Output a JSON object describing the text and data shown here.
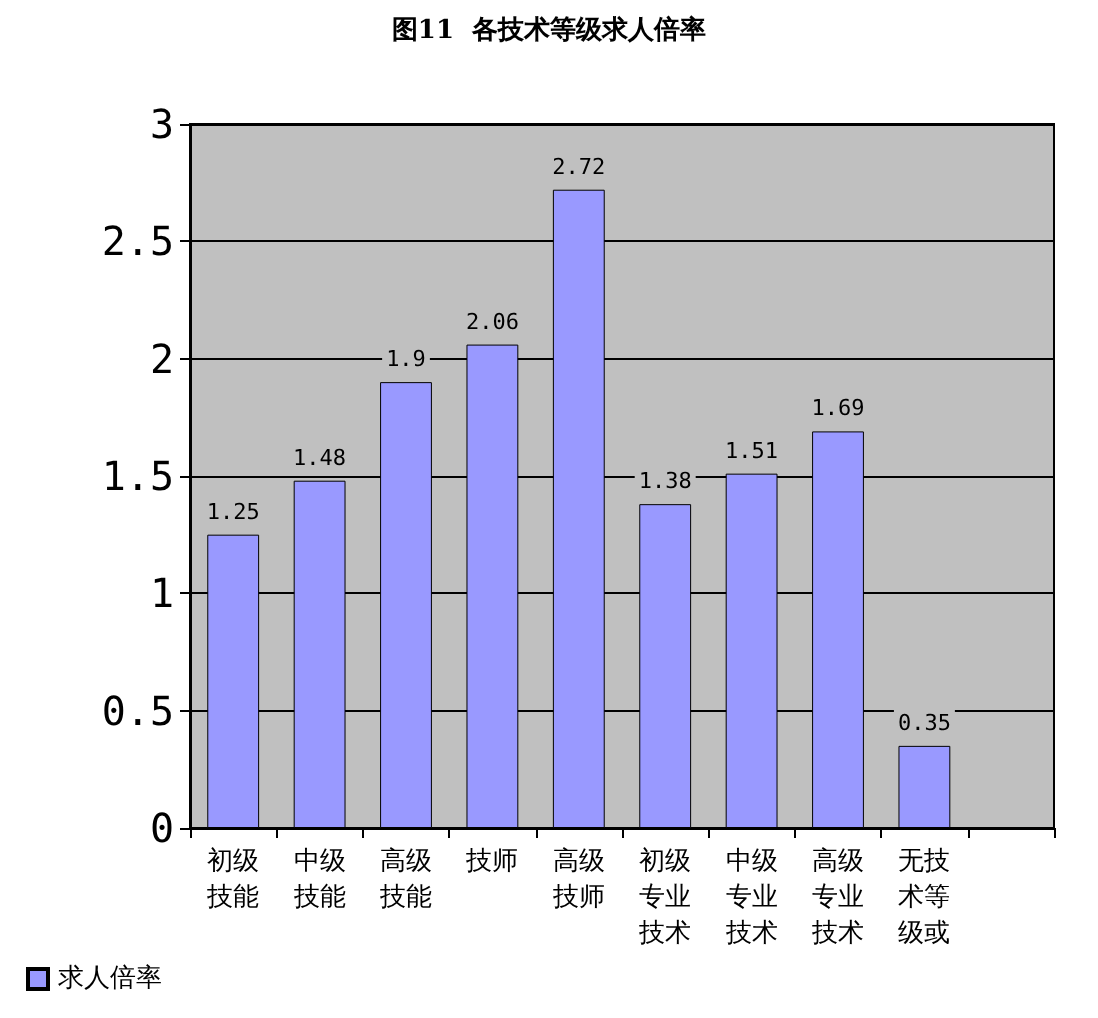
{
  "chart_data": {
    "type": "bar",
    "title": "图11  各技术等级求人倍率",
    "categories": [
      "初级技能",
      "中级技能",
      "高级技能",
      "技师",
      "高级技师",
      "初级专业技术",
      "中级专业技术",
      "高级专业技术",
      "无技术等级或",
      null
    ],
    "series": [
      {
        "name": "求人倍率",
        "color": "#9999ff",
        "values": [
          1.25,
          1.48,
          1.9,
          2.06,
          2.72,
          1.38,
          1.51,
          1.69,
          0.35,
          null
        ]
      }
    ],
    "ylim": [
      0,
      3
    ],
    "yticks": [
      0,
      0.5,
      1,
      1.5,
      2,
      2.5,
      3
    ],
    "grid": "y",
    "legend": "bottom left",
    "data_labels": true
  }
}
